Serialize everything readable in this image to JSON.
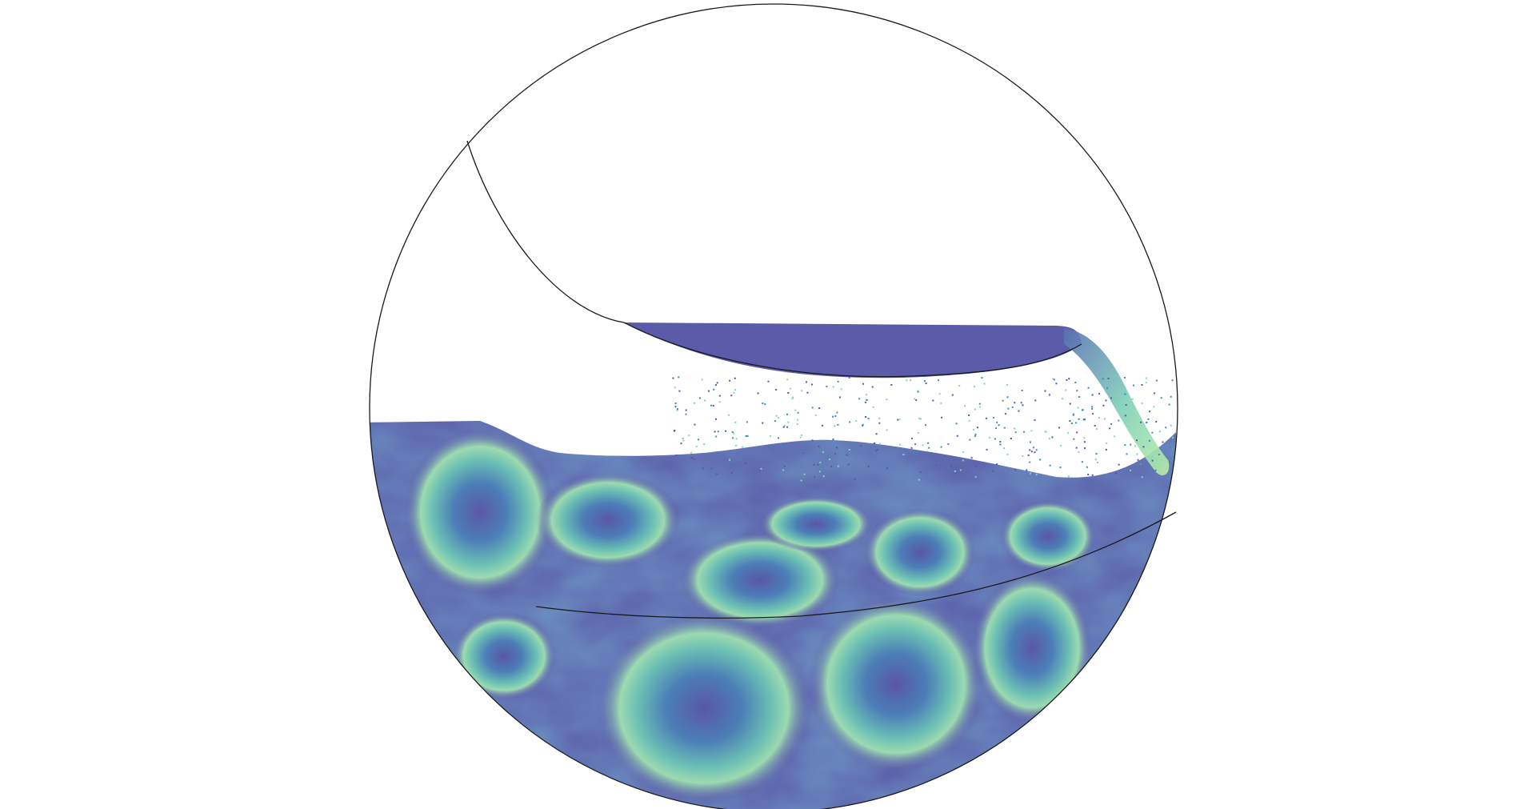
{
  "figure": {
    "subject": "fluid-sloshing-simulation-in-circular-vessel",
    "colors": {
      "background": "#ffffff",
      "vessel_outline": "#1a1a1a",
      "fluid_low": "#5a55a6",
      "fluid_mid": "#3e8bb8",
      "fluid_high": "#7fd6b6",
      "fluid_peak": "#c8f0a8"
    }
  }
}
